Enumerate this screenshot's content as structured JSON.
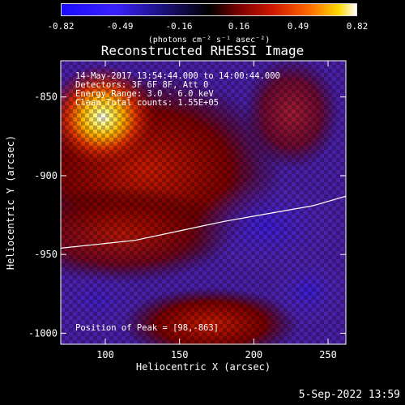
{
  "colorbar": {
    "ticks": [
      "-0.82",
      "-0.49",
      "-0.16",
      "0.16",
      "0.49",
      "0.82"
    ],
    "unit_label": "(photons cm⁻² s⁻¹ asec⁻²)"
  },
  "title": "Reconstructed RHESSI Image",
  "info_lines": [
    "14-May-2017 13:54:44.000 to 14:00:44.000",
    "Detectors: 3F 6F 8F, Att 0",
    "Energy Range: 3.0 - 6.0 keV",
    "Clean     Total counts: 1.55E+05"
  ],
  "peak_label": "Position of Peak = [98,-863]",
  "footer": "5-Sep-2022 13:59",
  "chart_data": {
    "type": "heatmap",
    "title": "Reconstructed RHESSI Image",
    "xlabel": "Heliocentric X (arcsec)",
    "ylabel": "Heliocentric Y (arcsec)",
    "xlim": [
      70,
      262
    ],
    "ylim": [
      -1007,
      -827
    ],
    "xticks": [
      100,
      150,
      200,
      250
    ],
    "yticks": [
      -850,
      -900,
      -950,
      -1000
    ],
    "colorbar_range": [
      -0.82,
      0.82
    ],
    "peak": {
      "x": 98,
      "y": -863
    },
    "limb": [
      {
        "x": 70,
        "y": -946
      },
      {
        "x": 120,
        "y": -941
      },
      {
        "x": 150,
        "y": -935
      },
      {
        "x": 180,
        "y": -929
      },
      {
        "x": 210,
        "y": -924
      },
      {
        "x": 240,
        "y": -919
      },
      {
        "x": 262,
        "y": -913
      }
    ]
  }
}
